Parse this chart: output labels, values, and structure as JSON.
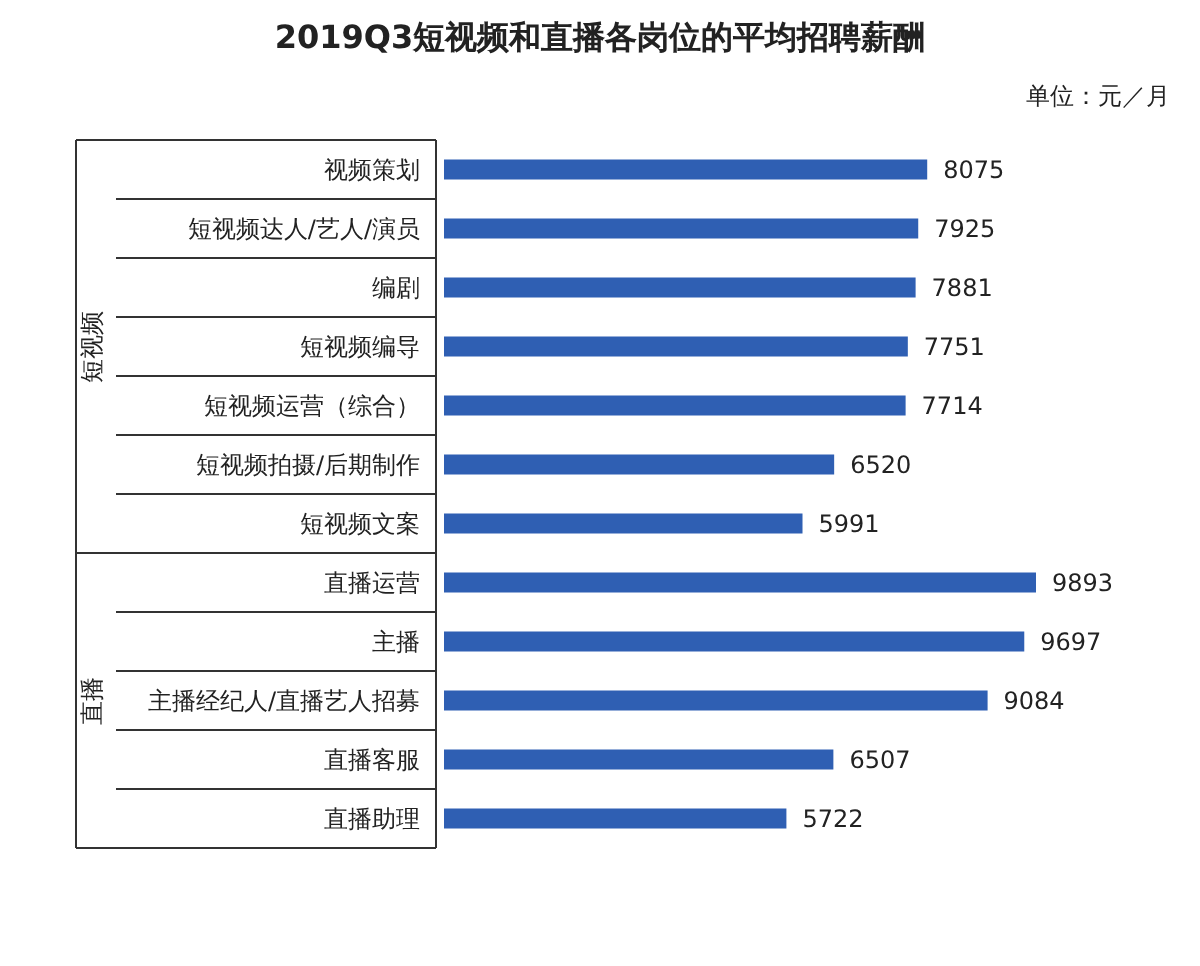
{
  "chart_data": {
    "type": "bar",
    "orientation": "horizontal",
    "title": "2019Q3短视频和直播各岗位的平均招聘薪酬",
    "subtitle": "单位：元／月",
    "categories": [
      "视频策划",
      "短视频达人/艺人/演员",
      "编剧",
      "短视频编导",
      "短视频运营（综合）",
      "短视频拍摄/后期制作",
      "短视频文案",
      "直播运营",
      "主播",
      "主播经纪人/直播艺人招募",
      "直播客服",
      "直播助理"
    ],
    "values": [
      8075,
      7925,
      7881,
      7751,
      7714,
      6520,
      5991,
      9893,
      9697,
      9084,
      6507,
      5722
    ],
    "color": "#2f5fb3",
    "data_labels": true,
    "annotations": [
      "短视频",
      "直播"
    ]
  }
}
